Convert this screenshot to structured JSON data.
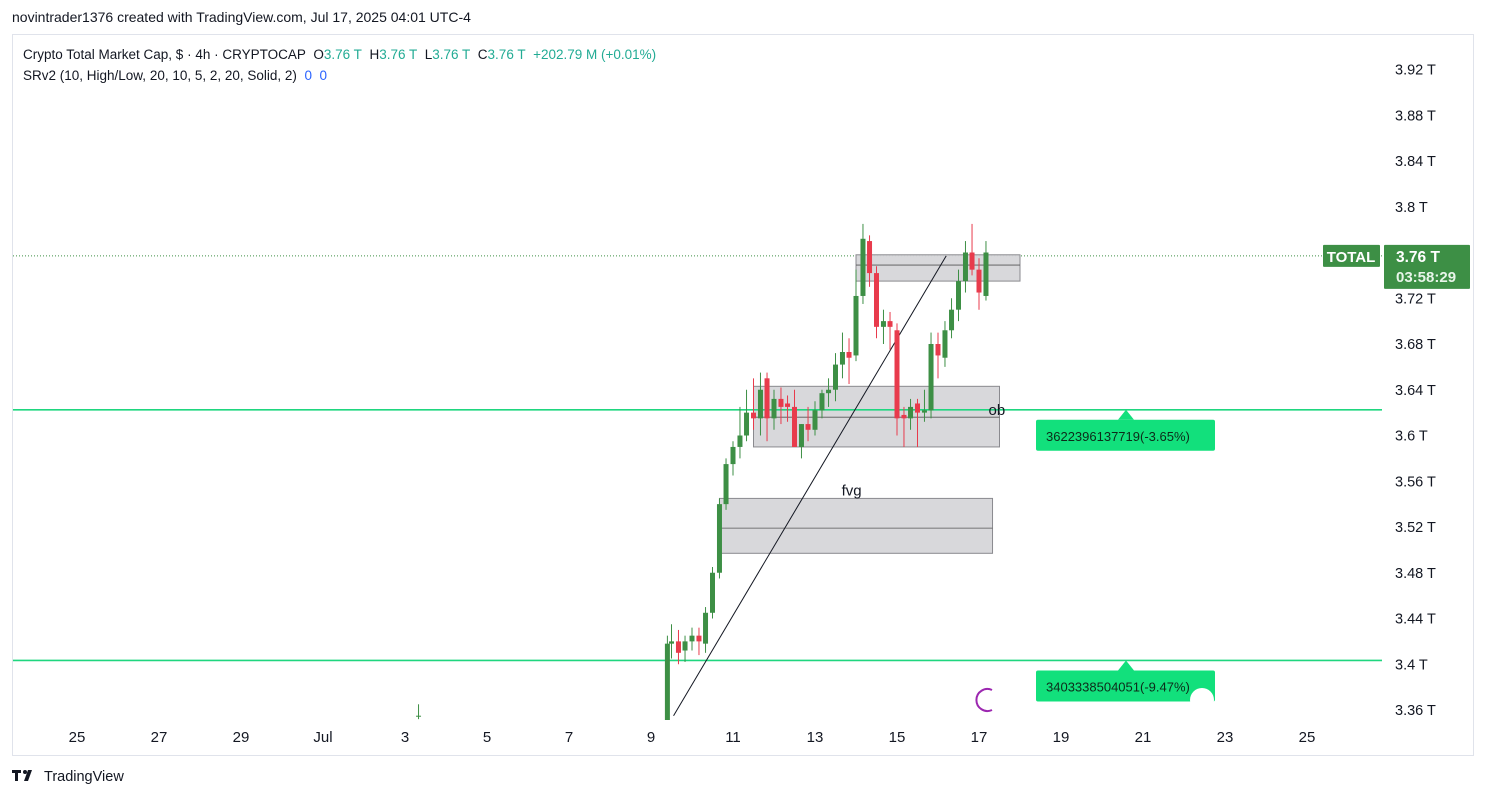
{
  "caption": "novintrader1376 created with TradingView.com, Jul 17, 2025 04:01 UTC-4",
  "legend": {
    "symbol_line": "Crypto Total Market Cap, $ · 4h · CRYPTOCAP",
    "o_label": "O",
    "o_value": "3.76 T",
    "h_label": "H",
    "h_value": "3.76 T",
    "l_label": "L",
    "l_value": "3.76 T",
    "c_label": "C",
    "c_value": "3.76 T",
    "change": "+202.79 M (+0.01%)",
    "indicator": "SRv2 (10, High/Low, 20, 10, 5, 2, 20, Solid, 2)",
    "ind_v1": "0",
    "ind_v2": "0"
  },
  "footer": {
    "brand": "TradingView"
  },
  "colors": {
    "up": "#3d8f45",
    "down": "#e83b4c",
    "sr_line": "#1fd67f",
    "price_tag": "#3d8f45",
    "box_fill": "#d6d6d9",
    "badge": "#12e07c"
  },
  "chart_data": {
    "type": "candlestick",
    "ylim": [
      3.345,
      3.945
    ],
    "y_ticks": [
      3.36,
      3.4,
      3.44,
      3.48,
      3.52,
      3.56,
      3.6,
      3.64,
      3.68,
      3.72,
      3.76,
      3.8,
      3.84,
      3.88,
      3.92
    ],
    "y_tick_labels": [
      "3.36 T",
      "3.4 T",
      "3.44 T",
      "3.48 T",
      "3.52 T",
      "3.56 T",
      "3.6 T",
      "3.64 T",
      "3.68 T",
      "3.72 T",
      "3.76 T",
      "3.8 T",
      "3.84 T",
      "3.88 T",
      "3.92 T"
    ],
    "x_ticks": [
      {
        "day": -6,
        "label": "25"
      },
      {
        "day": -4,
        "label": "27"
      },
      {
        "day": -2,
        "label": "29"
      },
      {
        "day": 0,
        "label": "Jul"
      },
      {
        "day": 2,
        "label": "3"
      },
      {
        "day": 4,
        "label": "5"
      },
      {
        "day": 6,
        "label": "7"
      },
      {
        "day": 8,
        "label": "9"
      },
      {
        "day": 10,
        "label": "11"
      },
      {
        "day": 12,
        "label": "13"
      },
      {
        "day": 14,
        "label": "15"
      },
      {
        "day": 16,
        "label": "17"
      },
      {
        "day": 18,
        "label": "19"
      },
      {
        "day": 20,
        "label": "21"
      },
      {
        "day": 22,
        "label": "23"
      },
      {
        "day": 24,
        "label": "25"
      }
    ],
    "candles": [
      [
        2.33,
        3.355,
        3.365,
        3.352,
        3.355
      ],
      [
        8.4,
        3.338,
        3.425,
        3.33,
        3.418
      ],
      [
        8.5,
        3.418,
        3.435,
        3.405,
        3.42
      ],
      [
        8.67,
        3.42,
        3.43,
        3.4,
        3.41
      ],
      [
        8.83,
        3.412,
        3.425,
        3.402,
        3.42
      ],
      [
        9.0,
        3.42,
        3.432,
        3.412,
        3.425
      ],
      [
        9.17,
        3.425,
        3.432,
        3.408,
        3.42
      ],
      [
        9.33,
        3.418,
        3.45,
        3.41,
        3.445
      ],
      [
        9.5,
        3.445,
        3.485,
        3.44,
        3.48
      ],
      [
        9.67,
        3.48,
        3.545,
        3.475,
        3.54
      ],
      [
        9.83,
        3.54,
        3.58,
        3.535,
        3.575
      ],
      [
        10.0,
        3.575,
        3.595,
        3.565,
        3.59
      ],
      [
        10.17,
        3.59,
        3.625,
        3.58,
        3.6
      ],
      [
        10.33,
        3.6,
        3.64,
        3.595,
        3.62
      ],
      [
        10.5,
        3.62,
        3.65,
        3.605,
        3.615
      ],
      [
        10.67,
        3.615,
        3.655,
        3.6,
        3.64
      ],
      [
        10.83,
        3.65,
        3.655,
        3.595,
        3.615
      ],
      [
        11.0,
        3.615,
        3.64,
        3.605,
        3.632
      ],
      [
        11.17,
        3.632,
        3.642,
        3.61,
        3.625
      ],
      [
        11.33,
        3.628,
        3.635,
        3.612,
        3.625
      ],
      [
        11.5,
        3.625,
        3.64,
        3.59,
        3.59
      ],
      [
        11.67,
        3.59,
        3.61,
        3.58,
        3.61
      ],
      [
        11.83,
        3.61,
        3.625,
        3.595,
        3.605
      ],
      [
        12.0,
        3.605,
        3.63,
        3.6,
        3.622
      ],
      [
        12.17,
        3.622,
        3.64,
        3.615,
        3.637
      ],
      [
        12.33,
        3.637,
        3.65,
        3.625,
        3.64
      ],
      [
        12.5,
        3.64,
        3.672,
        3.63,
        3.662
      ],
      [
        12.67,
        3.662,
        3.69,
        3.65,
        3.673
      ],
      [
        12.83,
        3.673,
        3.685,
        3.645,
        3.668
      ],
      [
        13.0,
        3.67,
        3.745,
        3.665,
        3.722
      ],
      [
        13.17,
        3.722,
        3.785,
        3.715,
        3.772
      ],
      [
        13.33,
        3.77,
        3.775,
        3.73,
        3.742
      ],
      [
        13.5,
        3.742,
        3.748,
        3.685,
        3.695
      ],
      [
        13.67,
        3.695,
        3.71,
        3.68,
        3.7
      ],
      [
        13.83,
        3.7,
        3.708,
        3.675,
        3.695
      ],
      [
        14.0,
        3.692,
        3.698,
        3.6,
        3.615
      ],
      [
        14.17,
        3.618,
        3.625,
        3.59,
        3.615
      ],
      [
        14.33,
        3.615,
        3.632,
        3.605,
        3.625
      ],
      [
        14.5,
        3.628,
        3.632,
        3.59,
        3.62
      ],
      [
        14.67,
        3.62,
        3.64,
        3.612,
        3.622
      ],
      [
        14.83,
        3.622,
        3.69,
        3.615,
        3.68
      ],
      [
        15.0,
        3.68,
        3.69,
        3.65,
        3.67
      ],
      [
        15.17,
        3.668,
        3.7,
        3.66,
        3.692
      ],
      [
        15.33,
        3.692,
        3.72,
        3.685,
        3.71
      ],
      [
        15.5,
        3.71,
        3.745,
        3.7,
        3.735
      ],
      [
        15.67,
        3.735,
        3.77,
        3.725,
        3.76
      ],
      [
        15.83,
        3.76,
        3.785,
        3.74,
        3.745
      ],
      [
        16.0,
        3.745,
        3.755,
        3.71,
        3.725
      ],
      [
        16.17,
        3.722,
        3.77,
        3.718,
        3.76
      ]
    ],
    "zones": [
      {
        "x0": 13.0,
        "x1": 17.0,
        "y0": 3.735,
        "y1": 3.758,
        "mid": 3.749,
        "label": ""
      },
      {
        "x0": 10.5,
        "x1": 16.5,
        "y0": 3.59,
        "y1": 3.643,
        "mid": 3.616,
        "label": "ob"
      },
      {
        "x0": 9.67,
        "x1": 16.33,
        "y0": 3.497,
        "y1": 3.545,
        "mid": 3.519,
        "label": "fvg"
      }
    ],
    "trendline": {
      "x0": 8.55,
      "y0": 3.355,
      "x1": 15.2,
      "y1": 3.757
    },
    "current_price": 3.757,
    "price_tag": {
      "symbol": "TOTAL",
      "price": "3.76 T",
      "countdown": "03:58:29"
    },
    "sr_levels": [
      {
        "price": 3.6225,
        "label": "3622396137719(-3.65%)"
      },
      {
        "price": 3.4033,
        "label": "3403338504051(-9.47%)"
      }
    ]
  }
}
